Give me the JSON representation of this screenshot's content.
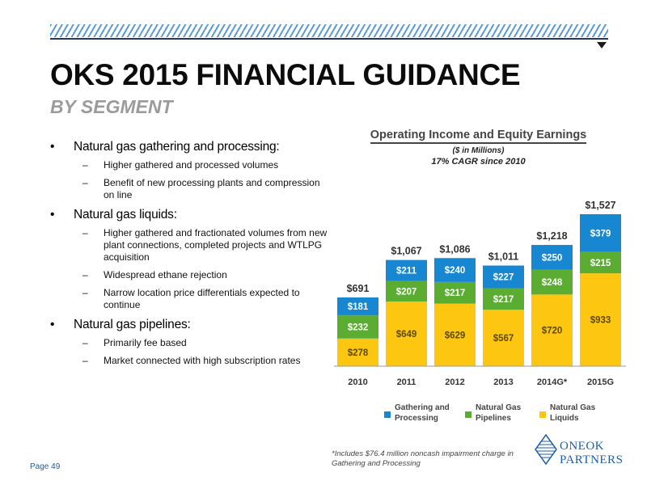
{
  "header": {
    "title": "OKS 2015 FINANCIAL GUIDANCE",
    "subtitle": "BY SEGMENT"
  },
  "bullets": [
    {
      "title": "Natural gas gathering and processing:",
      "items": [
        "Higher gathered and processed volumes",
        "Benefit of new processing plants and compression on line"
      ]
    },
    {
      "title": "Natural gas liquids:",
      "items": [
        "Higher gathered and fractionated volumes from new plant connections, completed projects and WTLPG acquisition",
        "Widespread ethane rejection",
        "Narrow location price differentials expected to continue"
      ]
    },
    {
      "title": "Natural gas pipelines:",
      "items": [
        "Primarily fee based",
        "Market connected with high subscription rates"
      ]
    }
  ],
  "chart_labels": {
    "title": "Operating Income and Equity Earnings",
    "units": "($ in Millions)",
    "cagr": "17% CAGR since 2010"
  },
  "chart_data": {
    "type": "bar",
    "stacked": true,
    "categories": [
      "2010",
      "2011",
      "2012",
      "2013",
      "2014G*",
      "2015G"
    ],
    "series": [
      {
        "name": "Natural Gas Liquids",
        "color": "#fdc611",
        "values": [
          278,
          649,
          629,
          567,
          720,
          933
        ],
        "labels": [
          "$278",
          "$649",
          "$629",
          "$567",
          "$720",
          "$933"
        ]
      },
      {
        "name": "Natural Gas Pipelines",
        "color": "#5bad32",
        "values": [
          232,
          207,
          217,
          217,
          248,
          215
        ],
        "labels": [
          "$232",
          "$207",
          "$217",
          "$217",
          "$248",
          "$215"
        ]
      },
      {
        "name": "Gathering and Processing",
        "color": "#1787d2",
        "values": [
          181,
          211,
          240,
          227,
          250,
          379
        ],
        "labels": [
          "$181",
          "$211",
          "$240",
          "$227",
          "$250",
          "$379"
        ]
      }
    ],
    "totals": [
      691,
      1067,
      1086,
      1011,
      1218,
      1527
    ],
    "total_labels": [
      "$691",
      "$1,067",
      "$1,086",
      "$1,011",
      "$1,218",
      "$1,527"
    ],
    "ylim": [
      0,
      1600
    ],
    "grid": false,
    "legend": "bottom"
  },
  "legend": [
    {
      "line1": "Gathering and",
      "line2": "Processing",
      "color": "#1787d2"
    },
    {
      "line1": "Natural Gas",
      "line2": "Pipelines",
      "color": "#5bad32"
    },
    {
      "line1": "Natural Gas",
      "line2": "Liquids",
      "color": "#fdc611"
    }
  ],
  "footnote": {
    "line1": "*Includes $76.4 million noncash impairment charge in",
    "line2": "Gathering and Processing"
  },
  "footer": {
    "page": "Page 49"
  },
  "logo": {
    "line1": "ONEOK",
    "line2": "PARTNERS",
    "color": "#1d5ea8"
  }
}
